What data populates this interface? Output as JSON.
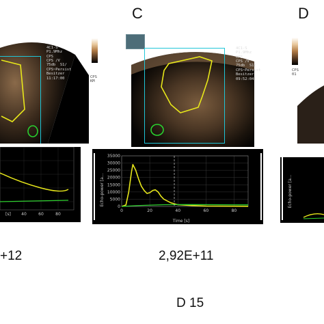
{
  "panels": [
    {
      "letter": "",
      "value_text": "+12"
    },
    {
      "letter": "C",
      "value_text": "2,92E+11"
    },
    {
      "letter": "D",
      "value_text": ""
    }
  ],
  "bottom_label": "D 15",
  "panel_c": {
    "info_lines": [
      "4C1-S",
      "P1.9Mhz",
      "CPS",
      "CPS /V",
      "",
      "75db  S1/",
      "CPS~Persist",
      "",
      "Besitzer",
      "09:52:04"
    ],
    "scale_labels": [
      "CPS",
      "KM"
    ],
    "plot": {
      "ylabel": "Echo-power [a...",
      "xlabel": "Time [s]",
      "yticks": [
        "35000",
        "30000",
        "25000",
        "20000",
        "15000",
        "10000",
        "5000",
        "0"
      ],
      "xticks": [
        "0",
        "20",
        "40",
        "60",
        "80"
      ]
    }
  },
  "panel_left": {
    "info_lines": [
      "4C1-S",
      "P1.9Mhz",
      "CPS",
      "CPS /V",
      "",
      "75db  S1/",
      "CPS~Persist",
      "",
      "Besitzer",
      "11:17:00"
    ],
    "scale_labels": [
      "CPS",
      "KM"
    ],
    "plot": {
      "xticks": [
        "40",
        "60",
        "80"
      ],
      "xlabel": "[s]"
    }
  },
  "panel_d": {
    "scale_labels": [
      "CPS",
      "01"
    ],
    "plot": {
      "ylabel": "Echo-power [a..."
    }
  },
  "chart_data": [
    {
      "type": "line",
      "title": "",
      "xlabel": "Time [s]",
      "ylabel": "Echo-power [a...",
      "xlim": [
        0,
        90
      ],
      "ylim": [
        0,
        35000
      ],
      "series": [
        {
          "name": "",
          "color": "#e6e61a",
          "x": [
            0,
            3,
            5,
            7,
            8,
            10,
            12,
            14,
            16,
            18,
            20,
            22,
            24,
            26,
            28,
            30,
            35,
            40,
            50,
            60,
            70,
            80,
            90
          ],
          "y": [
            0,
            1000,
            10000,
            24000,
            29000,
            25000,
            19000,
            14000,
            11000,
            9000,
            9500,
            11000,
            11500,
            10000,
            7000,
            5000,
            2500,
            1200,
            600,
            300,
            200,
            150,
            100
          ]
        },
        {
          "name": "",
          "color": "#2fd12f",
          "x": [
            0,
            10,
            20,
            30,
            40,
            50,
            60,
            70,
            80,
            90
          ],
          "y": [
            0,
            500,
            900,
            1200,
            1300,
            1300,
            1250,
            1200,
            1150,
            1100
          ]
        }
      ]
    }
  ]
}
